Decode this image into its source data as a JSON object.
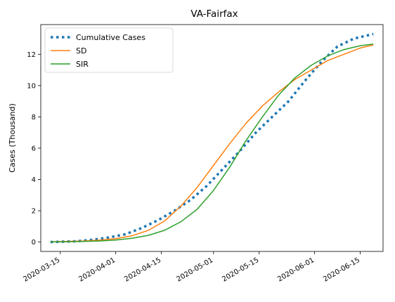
{
  "chart_data": {
    "type": "line",
    "title": "VA-Fairfax",
    "xlabel": "",
    "ylabel": "Cases (Thousand)",
    "xlim": [
      "2020-03-09",
      "2020-06-22"
    ],
    "ylim": [
      -0.6,
      13.9
    ],
    "x_ticks": [
      "2020-03-15",
      "2020-04-01",
      "2020-04-15",
      "2020-05-01",
      "2020-05-15",
      "2020-06-01",
      "2020-06-15"
    ],
    "y_ticks": [
      0,
      2,
      4,
      6,
      8,
      10,
      12
    ],
    "grid": false,
    "legend_position": "top-left",
    "series": [
      {
        "name": "Cumulative Cases",
        "color": "#1f77b4",
        "style": "dotted",
        "x": [
          "2020-03-12",
          "2020-03-15",
          "2020-03-20",
          "2020-03-25",
          "2020-03-30",
          "2020-04-04",
          "2020-04-09",
          "2020-04-14",
          "2020-04-19",
          "2020-04-24",
          "2020-04-29",
          "2020-05-04",
          "2020-05-09",
          "2020-05-14",
          "2020-05-19",
          "2020-05-24",
          "2020-05-29",
          "2020-06-03",
          "2020-06-08",
          "2020-06-13",
          "2020-06-19"
        ],
        "y": [
          0.0,
          0.02,
          0.05,
          0.15,
          0.3,
          0.5,
          0.9,
          1.4,
          2.0,
          2.7,
          3.6,
          4.7,
          5.8,
          7.0,
          8.0,
          9.0,
          10.3,
          11.5,
          12.5,
          13.0,
          13.3
        ]
      },
      {
        "name": "SD",
        "color": "#ff7f0e",
        "style": "solid",
        "x": [
          "2020-03-12",
          "2020-03-17",
          "2020-03-22",
          "2020-03-27",
          "2020-04-01",
          "2020-04-06",
          "2020-04-11",
          "2020-04-16",
          "2020-04-21",
          "2020-04-26",
          "2020-05-01",
          "2020-05-06",
          "2020-05-11",
          "2020-05-16",
          "2020-05-21",
          "2020-05-26",
          "2020-05-31",
          "2020-06-05",
          "2020-06-10",
          "2020-06-15",
          "2020-06-19"
        ],
        "y": [
          0.02,
          0.04,
          0.07,
          0.12,
          0.22,
          0.4,
          0.75,
          1.35,
          2.3,
          3.5,
          4.9,
          6.3,
          7.6,
          8.7,
          9.6,
          10.4,
          11.0,
          11.6,
          12.0,
          12.4,
          12.6
        ]
      },
      {
        "name": "SIR",
        "color": "#2ca02c",
        "style": "solid",
        "x": [
          "2020-03-12",
          "2020-03-17",
          "2020-03-22",
          "2020-03-27",
          "2020-04-01",
          "2020-04-06",
          "2020-04-11",
          "2020-04-16",
          "2020-04-21",
          "2020-04-26",
          "2020-05-01",
          "2020-05-06",
          "2020-05-11",
          "2020-05-16",
          "2020-05-21",
          "2020-05-26",
          "2020-05-31",
          "2020-06-05",
          "2020-06-10",
          "2020-06-15",
          "2020-06-19"
        ],
        "y": [
          0.01,
          0.02,
          0.04,
          0.07,
          0.13,
          0.24,
          0.43,
          0.75,
          1.3,
          2.1,
          3.3,
          4.8,
          6.5,
          8.0,
          9.4,
          10.5,
          11.3,
          11.9,
          12.3,
          12.55,
          12.65
        ]
      }
    ]
  }
}
